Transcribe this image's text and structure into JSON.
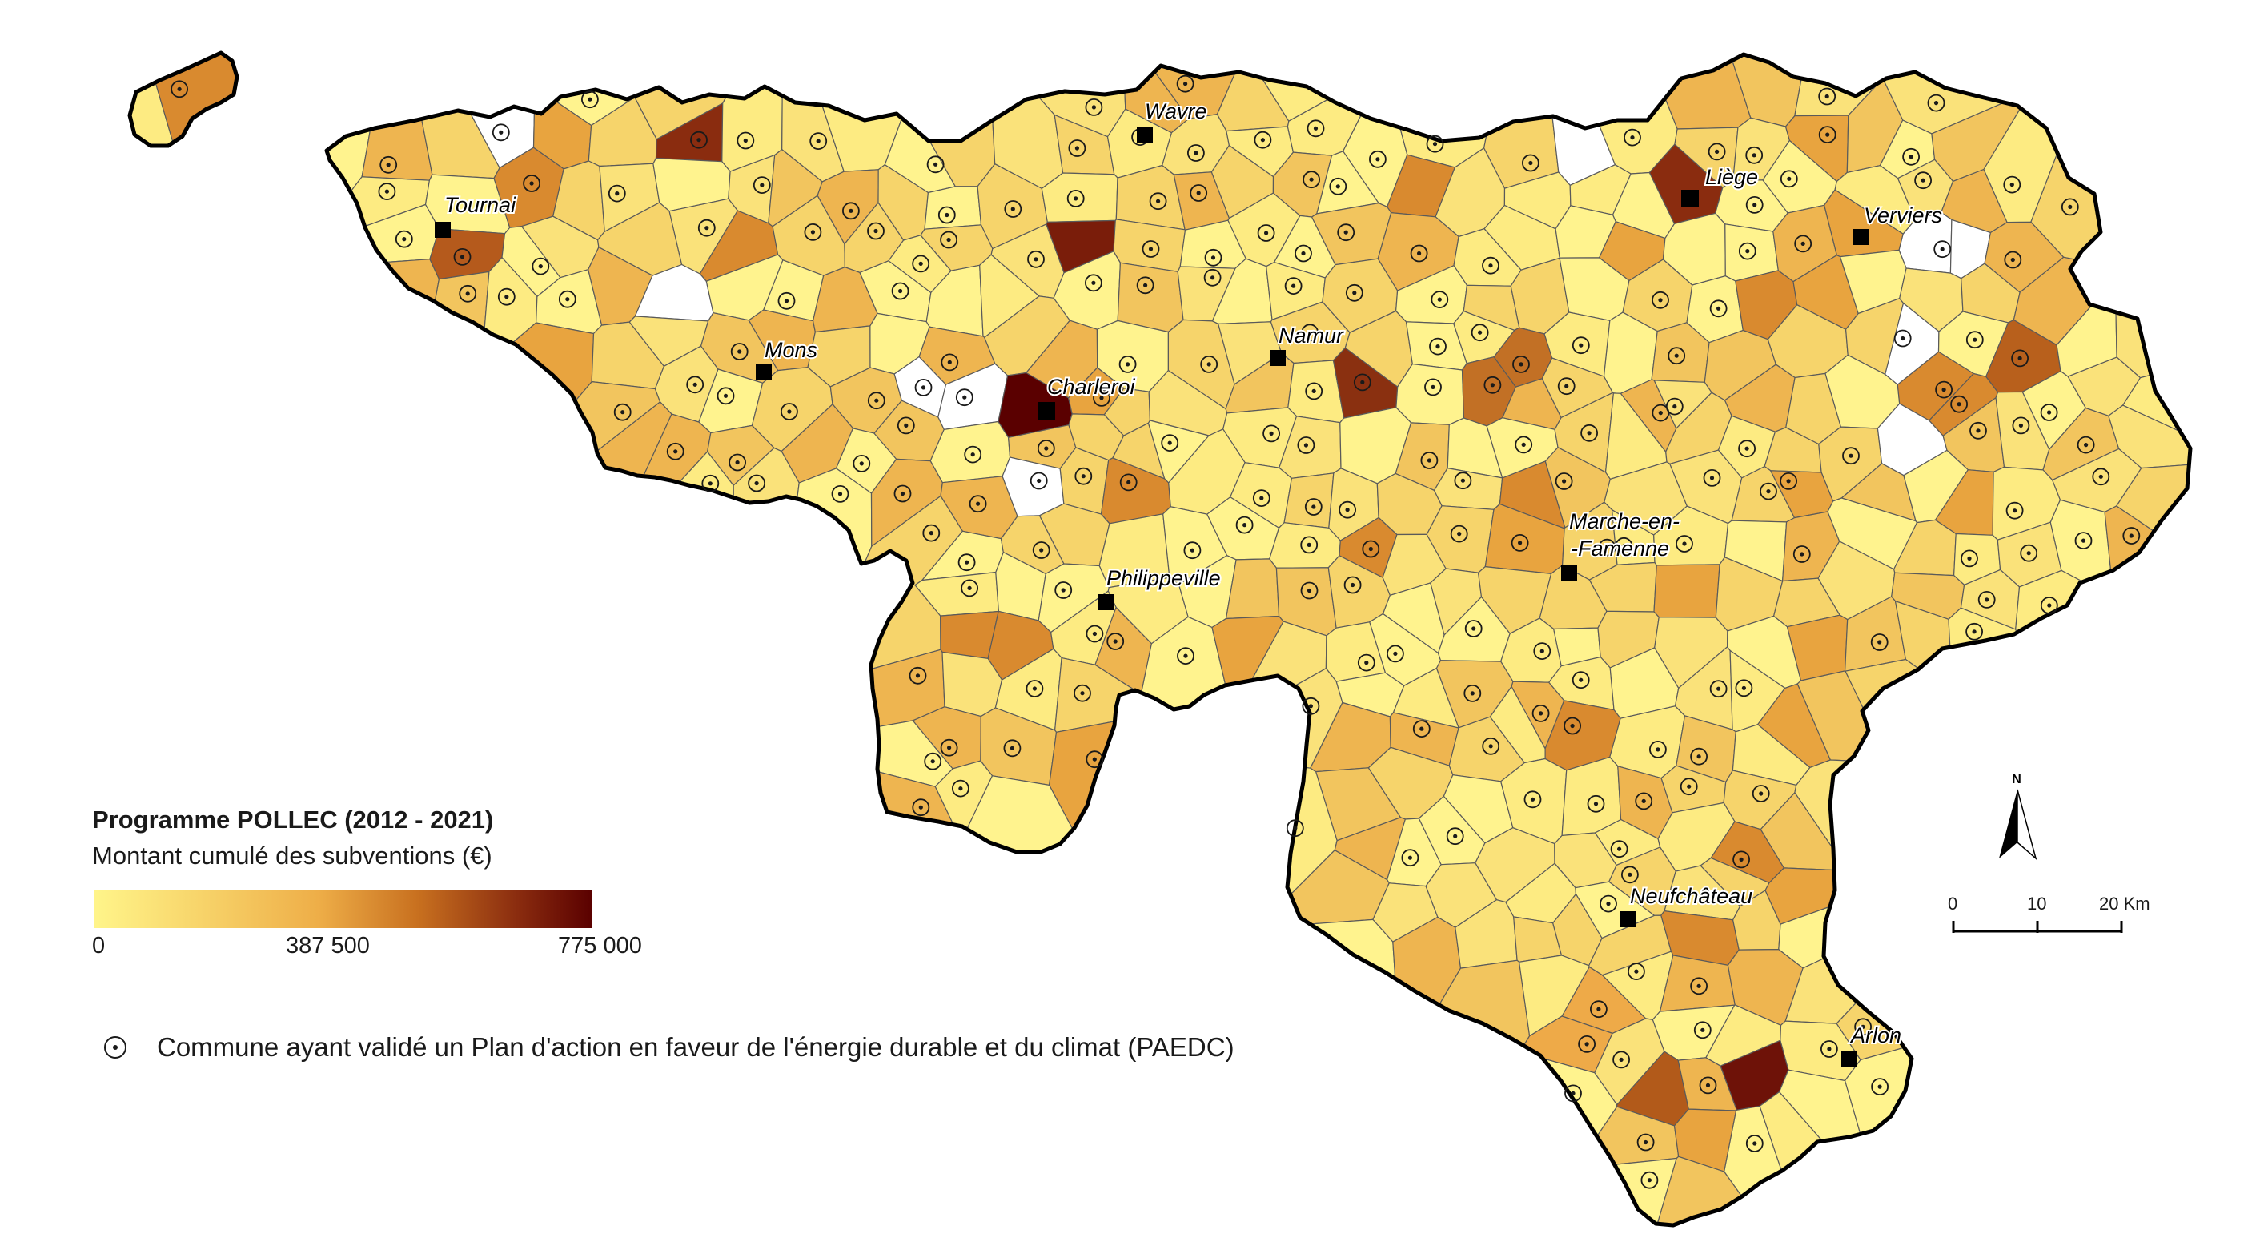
{
  "legend": {
    "title": "Programme POLLEC (2012 - 2021)",
    "subtitle": "Montant cumulé des subventions (€)",
    "tick_min": "0",
    "tick_mid": "387 500",
    "tick_max": "775 000",
    "colors": [
      "#fff58a",
      "#f6c862",
      "#e8a43f",
      "#c2691f",
      "#8a2c0f",
      "#5a0000"
    ],
    "paedc_label": "Commune ayant validé un Plan d'action en faveur de l'énergie durable et du climat (PAEDC)"
  },
  "cities": [
    {
      "name": "Tournai"
    },
    {
      "name": "Wavre"
    },
    {
      "name": "Liège"
    },
    {
      "name": "Verviers"
    },
    {
      "name": "Mons"
    },
    {
      "name": "Charleroi"
    },
    {
      "name": "Namur"
    },
    {
      "name": "Marche-en-",
      "name2": "-Famenne"
    },
    {
      "name": "Philippeville"
    },
    {
      "name": "Neufchâteau"
    },
    {
      "name": "Arlon"
    }
  ],
  "scale": {
    "t0": "0",
    "t1": "10",
    "t2": "20 Km"
  },
  "north": "N",
  "colors": {
    "no_data": "#ffffff",
    "border": "#000000",
    "commune_line": "#5a5a5a"
  }
}
